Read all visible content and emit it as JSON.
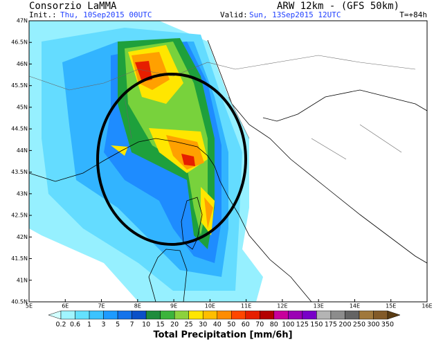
{
  "header": {
    "organization": "Consorzio LaMMA",
    "model": "ARW 12km - (GFS 50km)",
    "init_label": "Init.:",
    "init_time": "Thu, 10Sep2015 00UTC",
    "valid_label": "Valid:",
    "valid_time": "Sun, 13Sep2015 12UTC",
    "lead": "T=+84h"
  },
  "map": {
    "lat_labels": [
      "47N",
      "46.5N",
      "46N",
      "45.5N",
      "45N",
      "44.5N",
      "44N",
      "43.5N",
      "43N",
      "42.5N",
      "42N",
      "41.5N",
      "41N",
      "40.5N"
    ],
    "lon_labels": [
      "5E",
      "6E",
      "7E",
      "8E",
      "9E",
      "10E",
      "11E",
      "12E",
      "13E",
      "14E",
      "15E",
      "16E"
    ]
  },
  "colorbar": {
    "title": "Total Precipitation [mm/6h]",
    "levels": [
      "0.2",
      "0.6",
      "1",
      "3",
      "5",
      "7",
      "10",
      "15",
      "20",
      "25",
      "30",
      "40",
      "50",
      "60",
      "70",
      "80",
      "100",
      "125",
      "150",
      "175",
      "200",
      "250",
      "300",
      "350"
    ],
    "colors": [
      "#d2ffff",
      "#a0f5ff",
      "#64e1ff",
      "#3cc3ff",
      "#1e9bff",
      "#1473eb",
      "#0a50c8",
      "#1e8c3c",
      "#3cb43c",
      "#8cd23c",
      "#ffe600",
      "#ffbe00",
      "#ff8c00",
      "#ff4600",
      "#e61e00",
      "#b40000",
      "#c8009b",
      "#9b00b4",
      "#7800c8",
      "#b4b4b4",
      "#8c8c8c",
      "#646464",
      "#a0783c",
      "#825a28",
      "#5a3c14"
    ]
  }
}
